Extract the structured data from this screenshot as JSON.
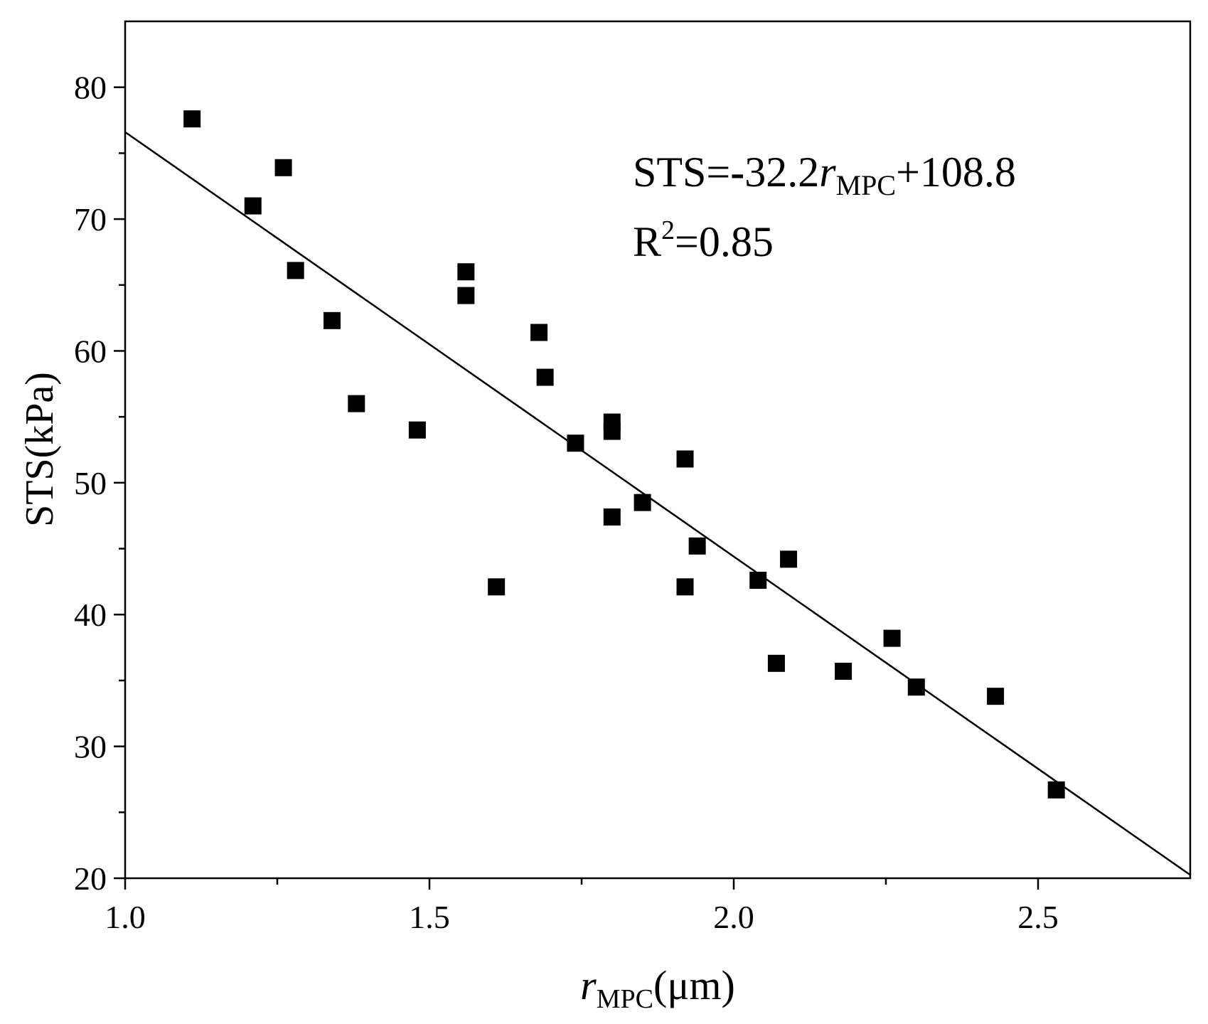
{
  "chart_data": {
    "type": "scatter",
    "title": "",
    "xlabel": {
      "var": "r",
      "sub": "MPC",
      "unit": "(μm)"
    },
    "ylabel": "STS(kPa)",
    "xlim": [
      1.0,
      2.75
    ],
    "ylim": [
      20,
      85
    ],
    "xticks": [
      1.0,
      1.5,
      2.0,
      2.5
    ],
    "xtick_labels": [
      "1.0",
      "1.5",
      "2.0",
      "2.5"
    ],
    "xminor": [
      1.25,
      1.75,
      2.25
    ],
    "yticks": [
      20,
      30,
      40,
      50,
      60,
      70,
      80
    ],
    "ytick_labels": [
      "20",
      "30",
      "40",
      "50",
      "60",
      "70",
      "80"
    ],
    "yminor": [
      25,
      35,
      45,
      55,
      65,
      75
    ],
    "series": [
      {
        "name": "STS",
        "marker": "square",
        "color": "#000000",
        "x": [
          1.11,
          1.21,
          1.26,
          1.28,
          1.34,
          1.38,
          1.48,
          1.56,
          1.56,
          1.61,
          1.68,
          1.69,
          1.74,
          1.8,
          1.8,
          1.8,
          1.85,
          1.92,
          1.92,
          1.94,
          2.04,
          2.07,
          2.09,
          2.18,
          2.26,
          2.3,
          2.43,
          2.53
        ],
        "y": [
          77.6,
          71.0,
          73.9,
          66.1,
          62.3,
          56.0,
          54.0,
          66.0,
          64.2,
          42.1,
          61.4,
          58.0,
          53.0,
          54.6,
          53.9,
          47.4,
          48.5,
          51.8,
          42.1,
          45.2,
          42.6,
          36.3,
          44.2,
          35.7,
          38.2,
          34.5,
          33.8,
          26.7
        ]
      }
    ],
    "fit": {
      "slope": -32.2,
      "intercept": 108.8,
      "x_range": [
        1.0,
        2.75
      ]
    },
    "annotations": {
      "eq_prefix": "STS=",
      "eq_minus": "-",
      "eq_coef": "32.2",
      "eq_var": "r",
      "eq_sub": "MPC",
      "eq_suffix": "+108.8",
      "r2_base": "R",
      "r2_sup": "2",
      "r2_value": "=0.85"
    }
  }
}
